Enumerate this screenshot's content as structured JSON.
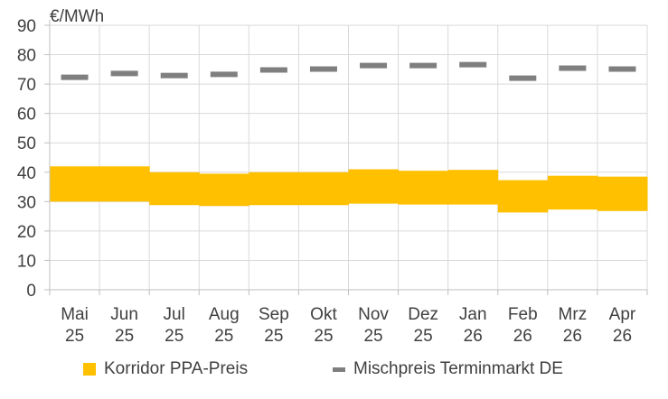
{
  "colors": {
    "corridor": "#FFC000",
    "market": "#7F7F7F",
    "grid": "#D9D9D9",
    "axis": "#BFBFBF",
    "text": "#404040"
  },
  "chart_data": {
    "type": "bar",
    "subtype": "floating-range-with-markers",
    "ylabel": "€/MWh",
    "ylim": [
      0,
      90
    ],
    "yticks": [
      0,
      10,
      20,
      30,
      40,
      50,
      60,
      70,
      80,
      90
    ],
    "grid": true,
    "legend_position": "bottom",
    "categories": [
      [
        "Mai",
        "25"
      ],
      [
        "Jun",
        "25"
      ],
      [
        "Jul",
        "25"
      ],
      [
        "Aug",
        "25"
      ],
      [
        "Sep",
        "25"
      ],
      [
        "Okt",
        "25"
      ],
      [
        "Nov",
        "25"
      ],
      [
        "Dez",
        "25"
      ],
      [
        "Jan",
        "26"
      ],
      [
        "Feb",
        "26"
      ],
      [
        "Mrz",
        "26"
      ],
      [
        "Apr",
        "26"
      ]
    ],
    "series": [
      {
        "name": "Korridor PPA-Preis",
        "type": "range",
        "low": [
          30.0,
          30.0,
          28.8,
          28.5,
          28.8,
          28.8,
          29.3,
          29.0,
          29.0,
          26.3,
          27.3,
          26.8
        ],
        "high": [
          42.0,
          42.0,
          40.0,
          39.5,
          40.0,
          40.0,
          41.0,
          40.5,
          40.8,
          37.3,
          38.8,
          38.5
        ]
      },
      {
        "name": "Mischpreis Terminmarkt DE",
        "type": "marker",
        "values": [
          72.3,
          73.6,
          72.9,
          73.3,
          74.8,
          75.1,
          76.3,
          76.3,
          76.6,
          72.0,
          75.4,
          75.1
        ]
      }
    ]
  }
}
